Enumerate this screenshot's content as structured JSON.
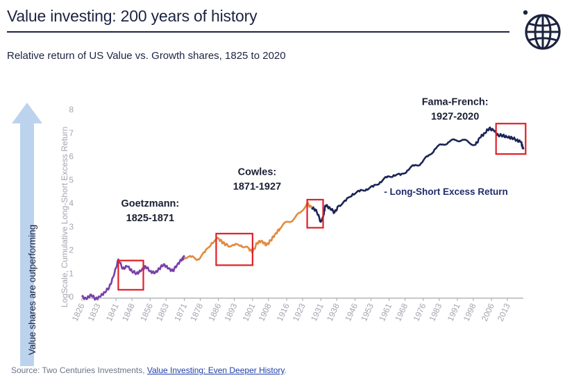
{
  "header": {
    "title": "Value investing: 200 years of history",
    "subtitle": "Relative return of US Value vs. Growth shares, 1825 to 2020"
  },
  "side_arrow": {
    "label": "Value shares are outperforming",
    "color": "#bcd3ee"
  },
  "footer": {
    "source_prefix": "Source: Two Centuries Investments, ",
    "source_link": "Value Investing: Even Deeper History",
    "source_suffix": "."
  },
  "logo": {
    "icon": "globe-icon",
    "color": "#1c2340"
  },
  "chart_data": {
    "type": "line",
    "ylabel": "LogScale, Cumulative Long-Short Excess Return",
    "ylim": [
      0,
      8
    ],
    "xlim": [
      1826,
      2020
    ],
    "y_ticks": [
      "0",
      "1",
      "2",
      "3",
      "4",
      "5",
      "6",
      "7",
      "8"
    ],
    "x_ticks": [
      "1826",
      "1833",
      "1841",
      "1848",
      "1856",
      "1863",
      "1871",
      "1878",
      "1886",
      "1893",
      "1901",
      "1908",
      "1916",
      "1923",
      "1931",
      "1938",
      "1946",
      "1953",
      "1961",
      "1968",
      "1976",
      "1983",
      "1991",
      "1998",
      "2006",
      "2013"
    ],
    "legend": "- Long-Short Excess Return",
    "series": [
      {
        "name": "Goetzmann: 1825-1871",
        "color": "#7b3fa8",
        "points": [
          [
            1826,
            0.0
          ],
          [
            1828,
            -0.1
          ],
          [
            1830,
            0.1
          ],
          [
            1832,
            -0.1
          ],
          [
            1834,
            0.0
          ],
          [
            1836,
            0.2
          ],
          [
            1838,
            0.4
          ],
          [
            1840,
            0.9
          ],
          [
            1842,
            1.6
          ],
          [
            1844,
            1.2
          ],
          [
            1846,
            1.3
          ],
          [
            1848,
            1.1
          ],
          [
            1850,
            1.0
          ],
          [
            1852,
            1.1
          ],
          [
            1854,
            1.3
          ],
          [
            1856,
            1.1
          ],
          [
            1858,
            1.0
          ],
          [
            1860,
            1.2
          ],
          [
            1862,
            1.4
          ],
          [
            1864,
            1.2
          ],
          [
            1866,
            1.1
          ],
          [
            1868,
            1.4
          ],
          [
            1870,
            1.6
          ],
          [
            1871,
            1.7
          ]
        ]
      },
      {
        "name": "Cowles: 1871-1927",
        "color": "#e08a3e",
        "points": [
          [
            1871,
            1.7
          ],
          [
            1874,
            1.7
          ],
          [
            1877,
            1.6
          ],
          [
            1880,
            1.9
          ],
          [
            1883,
            2.3
          ],
          [
            1886,
            2.5
          ],
          [
            1888,
            2.3
          ],
          [
            1890,
            2.2
          ],
          [
            1893,
            2.2
          ],
          [
            1896,
            2.2
          ],
          [
            1899,
            2.1
          ],
          [
            1901,
            1.9
          ],
          [
            1903,
            2.3
          ],
          [
            1905,
            2.4
          ],
          [
            1907,
            2.2
          ],
          [
            1909,
            2.4
          ],
          [
            1911,
            2.7
          ],
          [
            1913,
            2.9
          ],
          [
            1916,
            3.2
          ],
          [
            1919,
            3.3
          ],
          [
            1922,
            3.6
          ],
          [
            1925,
            4.0
          ],
          [
            1927,
            3.8
          ]
        ]
      },
      {
        "name": "Fama-French: 1927-2020",
        "color": "#1a2455",
        "points": [
          [
            1927,
            3.8
          ],
          [
            1929,
            3.7
          ],
          [
            1931,
            3.2
          ],
          [
            1932,
            3.4
          ],
          [
            1933,
            3.9
          ],
          [
            1935,
            3.8
          ],
          [
            1937,
            3.6
          ],
          [
            1939,
            3.9
          ],
          [
            1942,
            4.1
          ],
          [
            1945,
            4.4
          ],
          [
            1948,
            4.5
          ],
          [
            1951,
            4.6
          ],
          [
            1954,
            4.7
          ],
          [
            1957,
            4.9
          ],
          [
            1960,
            5.1
          ],
          [
            1963,
            5.2
          ],
          [
            1966,
            5.2
          ],
          [
            1969,
            5.4
          ],
          [
            1972,
            5.6
          ],
          [
            1975,
            5.7
          ],
          [
            1978,
            6.0
          ],
          [
            1981,
            6.3
          ],
          [
            1984,
            6.5
          ],
          [
            1987,
            6.6
          ],
          [
            1990,
            6.7
          ],
          [
            1993,
            6.7
          ],
          [
            1996,
            6.6
          ],
          [
            1999,
            6.5
          ],
          [
            2001,
            6.8
          ],
          [
            2003,
            7.0
          ],
          [
            2005,
            7.2
          ],
          [
            2007,
            7.1
          ],
          [
            2009,
            6.9
          ],
          [
            2011,
            6.9
          ],
          [
            2013,
            6.8
          ],
          [
            2015,
            6.8
          ],
          [
            2017,
            6.7
          ],
          [
            2019,
            6.6
          ],
          [
            2020,
            6.3
          ]
        ]
      }
    ],
    "annotations": [
      {
        "lines": [
          "Goetzmann:",
          "1825-1871"
        ],
        "year": 1856,
        "y": 3.85
      },
      {
        "lines": [
          "Cowles:",
          "1871-1927"
        ],
        "year": 1903,
        "y": 5.2
      },
      {
        "lines": [
          "Fama-French:",
          "1927-2020"
        ],
        "year": 1990,
        "y": 8.2
      }
    ],
    "highlights": [
      {
        "from": 1842,
        "to": 1853,
        "y_min": 0.3,
        "y_max": 1.55
      },
      {
        "from": 1885,
        "to": 1901,
        "y_min": 1.35,
        "y_max": 2.7
      },
      {
        "from": 1925,
        "to": 1932,
        "y_min": 2.95,
        "y_max": 4.15
      },
      {
        "from": 2008,
        "to": 2021,
        "y_min": 6.1,
        "y_max": 7.4
      }
    ],
    "highlight_color": "#e01f26"
  }
}
